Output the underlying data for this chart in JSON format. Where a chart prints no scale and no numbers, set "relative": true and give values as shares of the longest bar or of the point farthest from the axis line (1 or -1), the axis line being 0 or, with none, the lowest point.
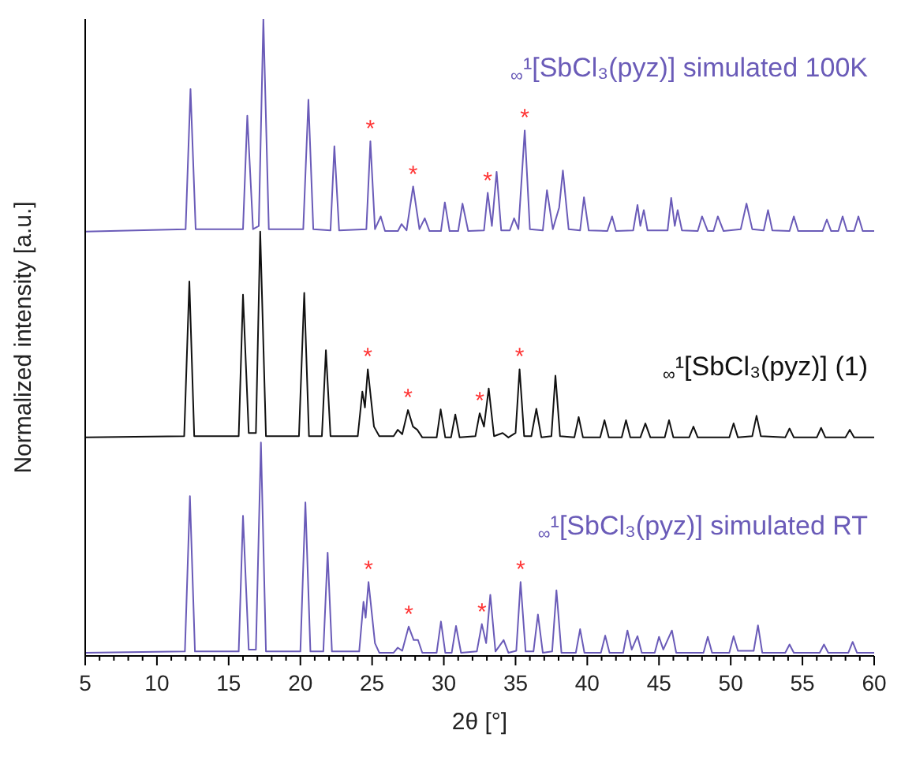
{
  "chart_data": {
    "type": "line",
    "relative": true,
    "xlabel": "2θ [°]",
    "ylabel": "Normalized intensity [a.u.]",
    "xlim": [
      5,
      60
    ],
    "xticks": [
      5,
      {
        "value": 6,
        "label": null
      },
      {
        "value": 7,
        "label": null
      },
      {
        "value": 8,
        "label": null
      },
      {
        "value": 9,
        "label": null
      },
      10,
      {
        "value": 11,
        "label": null
      },
      {
        "value": 12,
        "label": null
      },
      {
        "value": 13,
        "label": null
      },
      {
        "value": 14,
        "label": null
      },
      15,
      {
        "value": 16,
        "label": null
      },
      {
        "value": 17,
        "label": null
      },
      {
        "value": 18,
        "label": null
      },
      {
        "value": 19,
        "label": null
      },
      20,
      {
        "value": 21,
        "label": null
      },
      {
        "value": 22,
        "label": null
      },
      {
        "value": 23,
        "label": null
      },
      {
        "value": 24,
        "label": null
      },
      25,
      {
        "value": 26,
        "label": null
      },
      {
        "value": 27,
        "label": null
      },
      {
        "value": 28,
        "label": null
      },
      {
        "value": 29,
        "label": null
      },
      30,
      {
        "value": 31,
        "label": null
      },
      {
        "value": 32,
        "label": null
      },
      {
        "value": 33,
        "label": null
      },
      {
        "value": 34,
        "label": null
      },
      35,
      {
        "value": 36,
        "label": null
      },
      {
        "value": 37,
        "label": null
      },
      {
        "value": 38,
        "label": null
      },
      {
        "value": 39,
        "label": null
      },
      40,
      {
        "value": 41,
        "label": null
      },
      {
        "value": 42,
        "label": null
      },
      {
        "value": 43,
        "label": null
      },
      {
        "value": 44,
        "label": null
      },
      45,
      {
        "value": 46,
        "label": null
      },
      {
        "value": 47,
        "label": null
      },
      {
        "value": 48,
        "label": null
      },
      {
        "value": 49,
        "label": null
      },
      50,
      {
        "value": 51,
        "label": null
      },
      {
        "value": 52,
        "label": null
      },
      {
        "value": 53,
        "label": null
      },
      {
        "value": 54,
        "label": null
      },
      55,
      {
        "value": 56,
        "label": null
      },
      {
        "value": 57,
        "label": null
      },
      {
        "value": 58,
        "label": null
      },
      {
        "value": 59,
        "label": null
      },
      60
    ],
    "marker": "none",
    "line_style": "solid",
    "series": [
      {
        "name": "$_{∞}$¹[SbCl₃(pyz)] simulated 100K",
        "color": "#6a5bb8",
        "x": [
          5,
          12.0,
          12.34,
          12.7,
          16.0,
          16.3,
          16.7,
          17.1,
          17.42,
          17.8,
          20.2,
          20.56,
          20.9,
          22.1,
          22.37,
          22.7,
          24.6,
          24.88,
          25.2,
          25.6,
          25.9,
          26.8,
          27.05,
          27.4,
          27.86,
          28.3,
          28.67,
          29.0,
          29.8,
          30.07,
          30.4,
          31.0,
          31.3,
          31.7,
          32.8,
          33.06,
          33.35,
          33.68,
          34.0,
          34.6,
          34.9,
          35.2,
          35.64,
          36.0,
          36.9,
          37.19,
          37.6,
          38.04,
          38.3,
          38.7,
          39.5,
          39.77,
          40.1,
          41.4,
          41.73,
          42.0,
          43.2,
          43.5,
          43.7,
          43.94,
          44.2,
          45.6,
          45.85,
          46.1,
          46.3,
          46.6,
          47.7,
          48.0,
          48.4,
          48.8,
          49.1,
          49.5,
          50.7,
          51.1,
          51.5,
          52.3,
          52.6,
          52.9,
          54.1,
          54.4,
          54.7,
          56.4,
          56.7,
          57.0,
          57.5,
          57.8,
          58.1,
          58.6,
          58.9,
          59.2,
          60
        ],
        "values": [
          0.666,
          0.67,
          0.89,
          0.67,
          0.67,
          0.848,
          0.67,
          0.675,
          1,
          0.67,
          0.67,
          0.873,
          0.67,
          0.668,
          0.8,
          0.668,
          0.67,
          0.808,
          0.67,
          0.69,
          0.667,
          0.667,
          0.678,
          0.668,
          0.737,
          0.67,
          0.687,
          0.667,
          0.667,
          0.712,
          0.667,
          0.667,
          0.71,
          0.667,
          0.668,
          0.727,
          0.675,
          0.76,
          0.668,
          0.668,
          0.687,
          0.67,
          0.825,
          0.67,
          0.668,
          0.731,
          0.67,
          0.704,
          0.762,
          0.67,
          0.668,
          0.72,
          0.668,
          0.667,
          0.69,
          0.667,
          0.668,
          0.708,
          0.675,
          0.7,
          0.668,
          0.668,
          0.719,
          0.675,
          0.7,
          0.668,
          0.667,
          0.69,
          0.667,
          0.667,
          0.69,
          0.667,
          0.67,
          0.71,
          0.67,
          0.668,
          0.7,
          0.668,
          0.667,
          0.69,
          0.667,
          0.667,
          0.685,
          0.667,
          0.667,
          0.69,
          0.667,
          0.667,
          0.69,
          0.667,
          0.667
        ]
      },
      {
        "name": "$_{∞}$¹[SbCl₃(pyz)] (1)",
        "color": "#111111",
        "x": [
          5,
          11.9,
          12.26,
          12.6,
          15.7,
          16.0,
          16.4,
          16.9,
          17.2,
          17.6,
          19.9,
          20.27,
          20.6,
          21.5,
          21.78,
          22.1,
          24.0,
          24.32,
          24.5,
          24.7,
          25.13,
          25.5,
          26.5,
          26.79,
          27.1,
          27.5,
          27.85,
          28.15,
          28.5,
          29.5,
          29.78,
          30.1,
          30.5,
          30.8,
          31.1,
          32.2,
          32.5,
          32.8,
          33.13,
          33.5,
          34.1,
          34.5,
          35.0,
          35.28,
          35.6,
          36.1,
          36.45,
          36.8,
          37.5,
          37.78,
          38.1,
          39.1,
          39.4,
          39.7,
          40.9,
          41.2,
          41.5,
          42.4,
          42.7,
          43.0,
          43.7,
          44.05,
          44.4,
          45.4,
          45.7,
          46.0,
          47.1,
          47.4,
          47.7,
          49.9,
          50.2,
          50.5,
          51.5,
          51.8,
          52.1,
          53.8,
          54.1,
          54.4,
          56.0,
          56.3,
          56.6,
          58.0,
          58.3,
          58.6,
          60
        ],
        "values": [
          0.343,
          0.345,
          0.588,
          0.345,
          0.345,
          0.567,
          0.35,
          0.35,
          0.666,
          0.345,
          0.345,
          0.57,
          0.345,
          0.345,
          0.48,
          0.345,
          0.345,
          0.415,
          0.39,
          0.45,
          0.36,
          0.345,
          0.345,
          0.355,
          0.348,
          0.386,
          0.36,
          0.355,
          0.343,
          0.343,
          0.387,
          0.343,
          0.343,
          0.379,
          0.343,
          0.345,
          0.381,
          0.36,
          0.42,
          0.345,
          0.35,
          0.343,
          0.35,
          0.45,
          0.345,
          0.345,
          0.388,
          0.343,
          0.345,
          0.44,
          0.345,
          0.343,
          0.375,
          0.343,
          0.343,
          0.37,
          0.343,
          0.343,
          0.37,
          0.343,
          0.343,
          0.365,
          0.343,
          0.343,
          0.37,
          0.343,
          0.343,
          0.36,
          0.343,
          0.343,
          0.365,
          0.343,
          0.345,
          0.377,
          0.345,
          0.343,
          0.357,
          0.343,
          0.343,
          0.358,
          0.343,
          0.343,
          0.355,
          0.343,
          0.343
        ]
      },
      {
        "name": "$_{∞}$¹[SbCl₃(pyz)] simulated RT",
        "color": "#6a5bb8",
        "x": [
          5,
          11.95,
          12.3,
          12.65,
          15.7,
          16.0,
          16.4,
          16.9,
          17.25,
          17.6,
          20.0,
          20.35,
          20.7,
          21.6,
          21.9,
          22.2,
          24.1,
          24.4,
          24.55,
          24.75,
          25.2,
          25.5,
          26.5,
          26.79,
          27.1,
          27.55,
          27.9,
          28.2,
          28.5,
          29.5,
          29.8,
          30.1,
          30.55,
          30.85,
          31.2,
          32.3,
          32.65,
          32.95,
          33.24,
          33.6,
          34.17,
          34.5,
          35.05,
          35.35,
          35.7,
          36.25,
          36.56,
          36.9,
          37.55,
          37.85,
          38.2,
          39.2,
          39.5,
          39.8,
          40.95,
          41.25,
          41.55,
          42.5,
          42.8,
          43.1,
          43.5,
          43.8,
          44.7,
          45.0,
          45.3,
          45.9,
          46.2,
          48.1,
          48.4,
          48.7,
          49.9,
          50.2,
          50.5,
          51.6,
          51.9,
          52.2,
          53.8,
          54.1,
          54.4,
          56.2,
          56.5,
          56.8,
          58.2,
          58.5,
          58.8,
          60
        ],
        "values": [
          0.005,
          0.007,
          0.251,
          0.007,
          0.007,
          0.22,
          0.01,
          0.01,
          0.335,
          0.007,
          0.007,
          0.241,
          0.007,
          0.007,
          0.162,
          0.007,
          0.007,
          0.085,
          0.06,
          0.116,
          0.02,
          0.005,
          0.005,
          0.013,
          0.008,
          0.046,
          0.025,
          0.025,
          0.005,
          0.005,
          0.054,
          0.005,
          0.005,
          0.047,
          0.005,
          0.007,
          0.05,
          0.02,
          0.096,
          0.007,
          0.025,
          0.005,
          0.008,
          0.116,
          0.007,
          0.007,
          0.065,
          0.005,
          0.007,
          0.103,
          0.005,
          0.005,
          0.042,
          0.005,
          0.005,
          0.032,
          0.005,
          0.005,
          0.04,
          0.01,
          0.031,
          0.005,
          0.005,
          0.03,
          0.01,
          0.04,
          0.005,
          0.005,
          0.03,
          0.005,
          0.005,
          0.031,
          0.008,
          0.008,
          0.048,
          0.005,
          0.005,
          0.018,
          0.005,
          0.005,
          0.018,
          0.005,
          0.005,
          0.022,
          0.005,
          0.005
        ]
      }
    ],
    "annotations": [
      {
        "text": "*",
        "x": 24.88,
        "y": 0.808
      },
      {
        "text": "*",
        "x": 27.86,
        "y": 0.737
      },
      {
        "text": "*",
        "x": 33.06,
        "y": 0.727
      },
      {
        "text": "*",
        "x": 35.64,
        "y": 0.825
      },
      {
        "text": "*",
        "x": 24.7,
        "y": 0.45
      },
      {
        "text": "*",
        "x": 27.5,
        "y": 0.386
      },
      {
        "text": "*",
        "x": 32.5,
        "y": 0.381
      },
      {
        "text": "*",
        "x": 35.28,
        "y": 0.45
      },
      {
        "text": "*",
        "x": 24.75,
        "y": 0.116
      },
      {
        "text": "*",
        "x": 27.55,
        "y": 0.046
      },
      {
        "text": "*",
        "x": 32.65,
        "y": 0.05
      },
      {
        "text": "*",
        "x": 35.35,
        "y": 0.116
      }
    ]
  }
}
